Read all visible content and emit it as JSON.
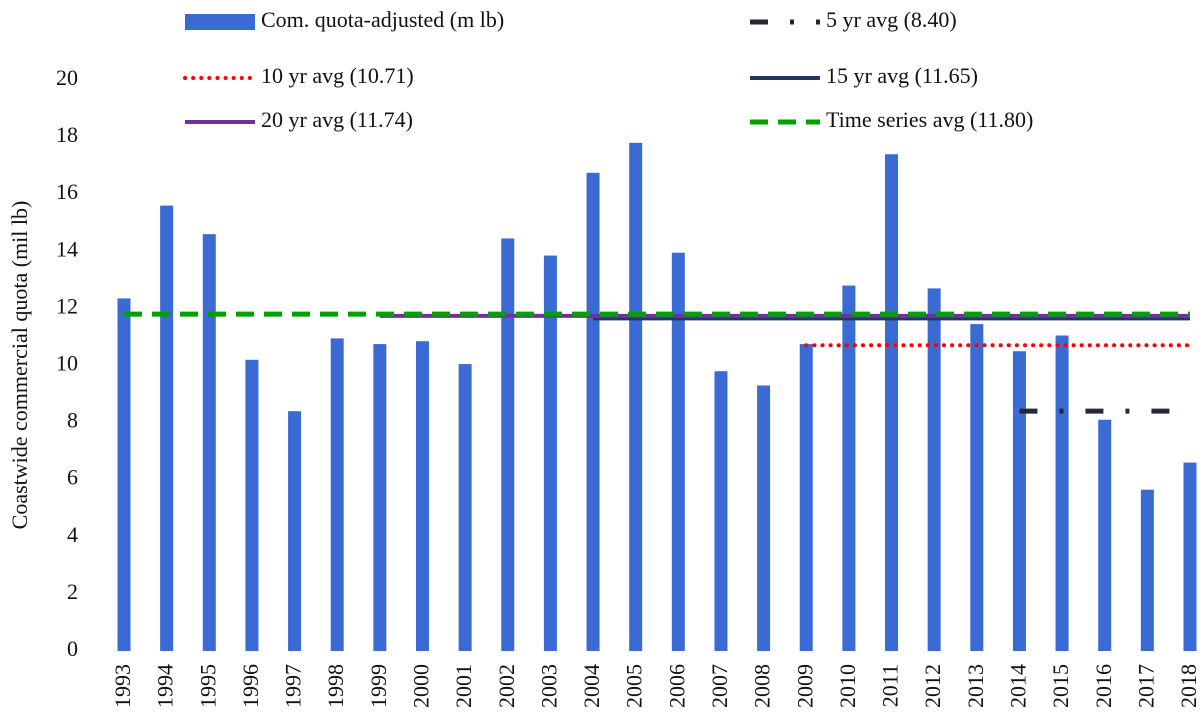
{
  "chart_data": {
    "type": "bar",
    "y_label": "Coastwide commercial quota (mil lb)",
    "categories": [
      "1993",
      "1994",
      "1995",
      "1996",
      "1997",
      "1998",
      "1999",
      "2000",
      "2001",
      "2002",
      "2003",
      "2004",
      "2005",
      "2006",
      "2007",
      "2008",
      "2009",
      "2010",
      "2011",
      "2012",
      "2013",
      "2014",
      "2015",
      "2016",
      "2017",
      "2018"
    ],
    "series": [
      {
        "name": "Com. quota-adjusted (m lb)",
        "type": "bar",
        "color": "#3a6bd4",
        "values": [
          12.35,
          15.6,
          14.6,
          10.2,
          8.4,
          10.95,
          10.75,
          10.85,
          10.05,
          14.45,
          13.85,
          16.75,
          17.8,
          13.95,
          9.8,
          9.3,
          10.75,
          12.8,
          17.4,
          12.7,
          11.45,
          10.5,
          11.05,
          8.1,
          5.65,
          6.6
        ]
      },
      {
        "name": "5 yr avg (8.40)",
        "type": "line",
        "style": "dashdot",
        "color": "#222a35",
        "values": [
          null,
          null,
          null,
          null,
          null,
          null,
          null,
          null,
          null,
          null,
          null,
          null,
          null,
          null,
          null,
          null,
          null,
          null,
          null,
          null,
          null,
          8.4,
          8.4,
          8.4,
          8.4,
          8.4
        ]
      },
      {
        "name": "10 yr avg (10.71)",
        "type": "line",
        "style": "dotted",
        "color": "#ff0000",
        "values": [
          null,
          null,
          null,
          null,
          null,
          null,
          null,
          null,
          null,
          null,
          null,
          null,
          null,
          null,
          null,
          null,
          10.71,
          10.71,
          10.71,
          10.71,
          10.71,
          10.71,
          10.71,
          10.71,
          10.71,
          10.71
        ]
      },
      {
        "name": "15 yr avg (11.65)",
        "type": "line",
        "style": "solid",
        "color": "#1f3864",
        "values": [
          null,
          null,
          null,
          null,
          null,
          null,
          null,
          null,
          null,
          null,
          null,
          11.65,
          11.65,
          11.65,
          11.65,
          11.65,
          11.65,
          11.65,
          11.65,
          11.65,
          11.65,
          11.65,
          11.65,
          11.65,
          11.65,
          11.65
        ]
      },
      {
        "name": "20 yr avg (11.74)",
        "type": "line",
        "style": "solid",
        "color": "#7030a0",
        "values": [
          null,
          null,
          null,
          null,
          null,
          null,
          11.74,
          11.74,
          11.74,
          11.74,
          11.74,
          11.74,
          11.74,
          11.74,
          11.74,
          11.74,
          11.74,
          11.74,
          11.74,
          11.74,
          11.74,
          11.74,
          11.74,
          11.74,
          11.74,
          11.74
        ]
      },
      {
        "name": "Time series avg (11.80)",
        "type": "line",
        "style": "dashed",
        "color": "#00a000",
        "values": [
          11.8,
          11.8,
          11.8,
          11.8,
          11.8,
          11.8,
          11.8,
          11.8,
          11.8,
          11.8,
          11.8,
          11.8,
          11.8,
          11.8,
          11.8,
          11.8,
          11.8,
          11.8,
          11.8,
          11.8,
          11.8,
          11.8,
          11.8,
          11.8,
          11.8,
          11.8
        ]
      }
    ],
    "ylim": [
      0,
      20
    ],
    "yticks": [
      0,
      2,
      4,
      6,
      8,
      10,
      12,
      14,
      16,
      18,
      20
    ],
    "grid": false
  }
}
